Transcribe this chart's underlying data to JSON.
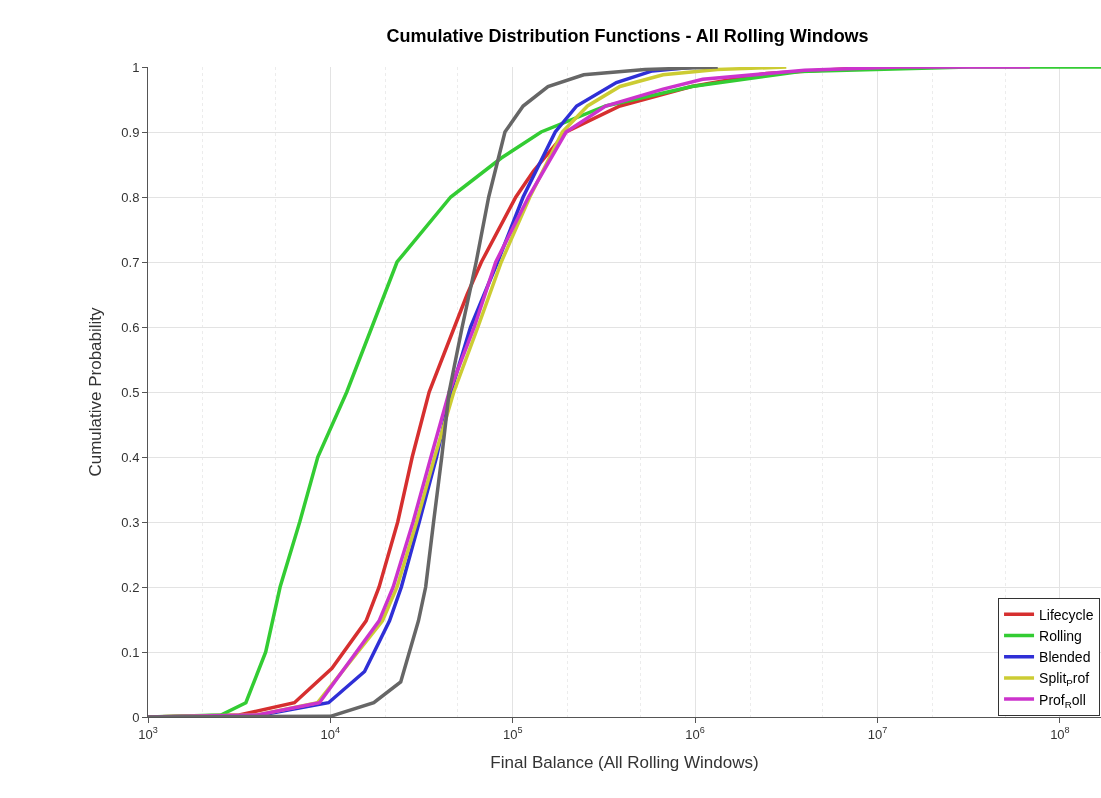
{
  "chart_data": {
    "type": "line",
    "title": "Cumulative Distribution Functions - All Rolling Windows",
    "xlabel": "Final Balance (All Rolling Windows)",
    "ylabel": "Cumulative Probability",
    "log": "x",
    "xlim": [
      1000,
      168000000
    ],
    "ylim": [
      0,
      1
    ],
    "xticks": [
      {
        "value": 1000,
        "label": "10$^{3}$"
      },
      {
        "value": 10000,
        "label": "10$^{4}$"
      },
      {
        "value": 100000,
        "label": "10$^{5}$"
      },
      {
        "value": 1000000,
        "label": "10$^{6}$"
      },
      {
        "value": 10000000,
        "label": "10$^{7}$"
      },
      {
        "value": 100000000,
        "label": "10$^{8}$"
      }
    ],
    "yticks": [
      0,
      0.1,
      0.2,
      0.3,
      0.4,
      0.5,
      0.6,
      0.7,
      0.8,
      0.9,
      1
    ],
    "grid": true,
    "legend": "bottom right",
    "marker": "none",
    "line_style": "solid",
    "series": [
      {
        "name": "Lifecycle",
        "color": "#d62f2f",
        "x": [
          1000,
          3160,
          6350,
          10200,
          15700,
          18500,
          23400,
          28100,
          34800,
          47900,
          56200,
          67300,
          104000,
          130000,
          196000,
          387000,
          955000,
          2450000,
          10000000
        ],
        "values": [
          0,
          0.003,
          0.022,
          0.075,
          0.148,
          0.2,
          0.3,
          0.4,
          0.5,
          0.6,
          0.65,
          0.7,
          0.8,
          0.84,
          0.9,
          0.94,
          0.97,
          0.99,
          1
        ]
      },
      {
        "name": "Rolling",
        "color": "#33cc33",
        "x": [
          1000,
          2510,
          3440,
          4420,
          5300,
          6790,
          8530,
          12300,
          16900,
          23200,
          45700,
          86500,
          143000,
          323000,
          960000,
          3760000,
          31600000,
          168000000
        ],
        "values": [
          0,
          0.003,
          0.022,
          0.1,
          0.2,
          0.3,
          0.4,
          0.5,
          0.6,
          0.7,
          0.8,
          0.86,
          0.9,
          0.94,
          0.97,
          0.993,
          1,
          1
        ]
      },
      {
        "name": "Blended",
        "color": "#2f2fd6",
        "x": [
          1000,
          3980,
          9770,
          15400,
          21100,
          24500,
          30700,
          38200,
          45800,
          58700,
          82600,
          114000,
          171000,
          224000,
          370000,
          582000,
          1000000
        ],
        "values": [
          0,
          0.002,
          0.022,
          0.07,
          0.148,
          0.2,
          0.3,
          0.4,
          0.5,
          0.6,
          0.7,
          0.8,
          0.9,
          0.94,
          0.976,
          0.994,
          1
        ]
      },
      {
        "name": "Split$_{P}$rof",
        "color": "#cccc33",
        "x": [
          1000,
          3980,
          8510,
          19300,
          23200,
          29700,
          37300,
          47500,
          64400,
          86500,
          124000,
          187000,
          257000,
          387000,
          667000,
          1320000,
          3160000
        ],
        "values": [
          0,
          0.003,
          0.022,
          0.148,
          0.2,
          0.3,
          0.4,
          0.5,
          0.6,
          0.7,
          0.8,
          0.9,
          0.94,
          0.97,
          0.988,
          0.996,
          1
        ]
      },
      {
        "name": "Prof$_{R}$oll",
        "color": "#cc33cc",
        "x": [
          1000,
          3980,
          8710,
          18500,
          22100,
          28400,
          35600,
          44800,
          61500,
          80700,
          122000,
          196000,
          323000,
          667000,
          1100000,
          3980000,
          13200000,
          68400000
        ],
        "values": [
          0,
          0.003,
          0.022,
          0.148,
          0.2,
          0.3,
          0.4,
          0.5,
          0.6,
          0.7,
          0.8,
          0.9,
          0.94,
          0.966,
          0.981,
          0.995,
          1,
          1
        ]
      },
      {
        "color": "#666666",
        "x": [
          1000,
          10000,
          17300,
          24300,
          30400,
          33300,
          36800,
          40800,
          44800,
          52800,
          63000,
          73800,
          90600,
          114000,
          156000,
          245000,
          531000,
          1330000
        ],
        "values": [
          0,
          0.001,
          0.022,
          0.054,
          0.148,
          0.2,
          0.3,
          0.4,
          0.5,
          0.6,
          0.7,
          0.8,
          0.9,
          0.94,
          0.97,
          0.988,
          0.996,
          1
        ]
      }
    ]
  }
}
